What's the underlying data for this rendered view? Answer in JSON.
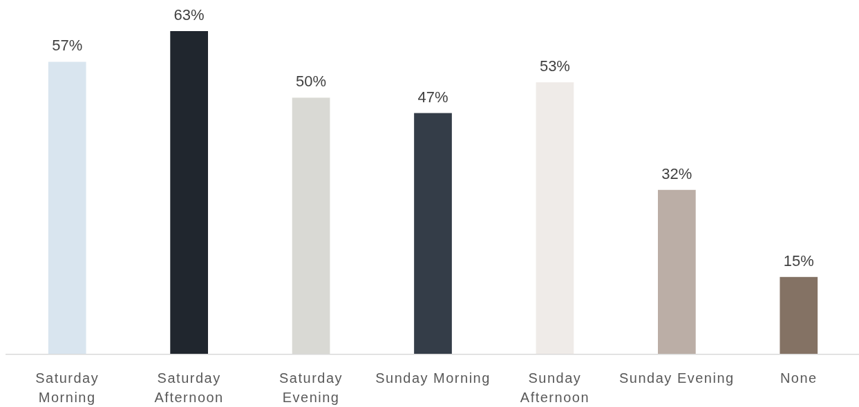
{
  "chart_data": {
    "type": "bar",
    "categories": [
      "Saturday Morning",
      "Saturday Afternoon",
      "Saturday Evening",
      "Sunday Morning",
      "Sunday Afternoon",
      "Sunday Evening",
      "None"
    ],
    "values": [
      57,
      63,
      50,
      47,
      53,
      32,
      15
    ],
    "colors": [
      "#d9e5ef",
      "#20262e",
      "#d9d9d4",
      "#343d48",
      "#efebe8",
      "#bbaea6",
      "#847264"
    ],
    "value_labels": [
      "57%",
      "63%",
      "50%",
      "47%",
      "53%",
      "32%",
      "15%"
    ]
  }
}
